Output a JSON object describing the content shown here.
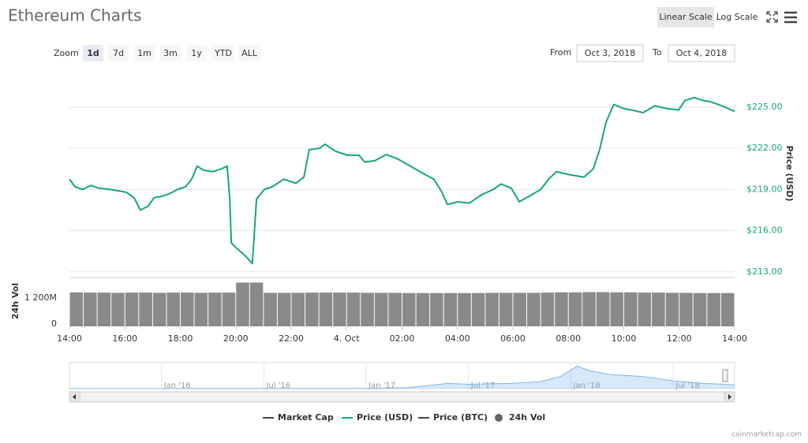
{
  "header": {
    "title": "Ethereum Charts",
    "scale_buttons": [
      "Linear Scale",
      "Log Scale"
    ]
  },
  "toolbar": {
    "zoom_label": "Zoom",
    "zoom_buttons": [
      "1d",
      "7d",
      "1m",
      "3m",
      "1y",
      "YTD",
      "ALL"
    ],
    "from_label": "From",
    "from_date": "Oct 3, 2018",
    "to_label": "To",
    "to_date": "Oct 4, 2018"
  },
  "legend": [
    "Market Cap",
    "Price (BTC)"
  ],
  "credits": "coinmarketcap.com",
  "chart_data": [
    {
      "type": "line",
      "y_label": "Price (USD)",
      "x": [
        14.0,
        14.2,
        14.48,
        14.77,
        15.05,
        15.48,
        16.05,
        16.33,
        16.56,
        16.85,
        17.05,
        17.33,
        17.62,
        17.9,
        18.19,
        18.41,
        18.61,
        18.84,
        19.18,
        19.47,
        19.69,
        19.78,
        19.84,
        20.04,
        20.33,
        20.6,
        20.75,
        21.03,
        21.32,
        21.74,
        22.17,
        22.46,
        22.65,
        23.02,
        23.22,
        23.59,
        24.02,
        24.45,
        24.65,
        25.02,
        25.44,
        25.87,
        26.3,
        26.73,
        27.15,
        27.44,
        27.64,
        28.01,
        28.43,
        28.86,
        29.29,
        29.57,
        29.94,
        30.23,
        30.58,
        31.0,
        31.29,
        31.57,
        31.99,
        32.56,
        32.9,
        33.13,
        33.36,
        33.64,
        33.99,
        34.27,
        34.7,
        35.12,
        35.55,
        35.98,
        36.21,
        36.55,
        36.83,
        37.12,
        37.54,
        38.0
      ],
      "series": [
        {
          "name": "Price (USD)",
          "color": "#18a47b",
          "values": [
            219.75,
            219.2,
            219.0,
            219.3,
            219.1,
            219.0,
            218.8,
            218.4,
            217.5,
            217.8,
            218.4,
            218.5,
            218.7,
            219.0,
            219.2,
            219.75,
            220.7,
            220.4,
            220.3,
            220.5,
            220.7,
            218.5,
            215.1,
            214.7,
            214.2,
            213.6,
            218.3,
            219.0,
            219.2,
            219.75,
            219.45,
            219.9,
            221.9,
            222.0,
            222.3,
            221.8,
            221.5,
            221.5,
            221.0,
            221.1,
            221.55,
            221.2,
            220.7,
            220.2,
            219.75,
            218.8,
            217.9,
            218.1,
            218.0,
            218.6,
            219.0,
            219.4,
            219.1,
            218.1,
            218.5,
            219.0,
            219.75,
            220.3,
            220.1,
            219.9,
            220.5,
            221.9,
            223.9,
            225.2,
            224.9,
            224.8,
            224.6,
            225.1,
            224.9,
            224.8,
            225.5,
            225.7,
            225.5,
            225.4,
            225.1,
            224.7
          ]
        }
      ],
      "xlim": [
        14,
        38
      ],
      "ylim": [
        212.7,
        227.7
      ],
      "yticks": [
        {
          "value": 213,
          "label": "$213.00"
        },
        {
          "value": 216,
          "label": "$216.00"
        },
        {
          "value": 219,
          "label": "$219.00"
        },
        {
          "value": 222,
          "label": "$222.00"
        },
        {
          "value": 225,
          "label": "$225.00"
        }
      ],
      "grid": true
    },
    {
      "type": "bar",
      "y_label": "24h Vol",
      "x": [
        14,
        14.5,
        15,
        15.5,
        16,
        16.5,
        17,
        17.5,
        18,
        18.5,
        19,
        19.5,
        20,
        20.5,
        21,
        21.5,
        22,
        22.5,
        23,
        23.5,
        24,
        24.5,
        25,
        25.5,
        26,
        26.5,
        27,
        27.5,
        28,
        28.5,
        29,
        29.5,
        30,
        30.5,
        31,
        31.5,
        32,
        32.5,
        33,
        33.5,
        34,
        34.5,
        35,
        35.5,
        36,
        36.5,
        37,
        37.5
      ],
      "series": [
        {
          "name": "24h Vol",
          "color": "#8a8a8a",
          "values": [
            1560000000,
            1550000000,
            1550000000,
            1540000000,
            1550000000,
            1550000000,
            1540000000,
            1550000000,
            1550000000,
            1540000000,
            1550000000,
            1550000000,
            2010000000,
            2010000000,
            1540000000,
            1540000000,
            1540000000,
            1550000000,
            1550000000,
            1550000000,
            1550000000,
            1540000000,
            1540000000,
            1540000000,
            1530000000,
            1530000000,
            1530000000,
            1530000000,
            1530000000,
            1530000000,
            1540000000,
            1540000000,
            1540000000,
            1540000000,
            1550000000,
            1560000000,
            1560000000,
            1570000000,
            1570000000,
            1560000000,
            1560000000,
            1550000000,
            1550000000,
            1540000000,
            1540000000,
            1530000000,
            1530000000,
            1530000000
          ]
        }
      ],
      "xlim": [
        14,
        38
      ],
      "ylim": [
        0,
        2245000000
      ],
      "yticks": [
        0,
        {
          "value": 1200000000,
          "label": "1 200M"
        }
      ],
      "xticks": [
        {
          "value": 14,
          "label": "14:00"
        },
        {
          "value": 16,
          "label": "16:00"
        },
        {
          "value": 18,
          "label": "18:00"
        },
        {
          "value": 20,
          "label": "20:00"
        },
        {
          "value": 22,
          "label": "22:00"
        },
        {
          "value": 24,
          "label": "4. Oct"
        },
        {
          "value": 26,
          "label": "02:00"
        },
        {
          "value": 28,
          "label": "04:00"
        },
        {
          "value": 30,
          "label": "06:00"
        },
        {
          "value": 32,
          "label": "08:00"
        },
        {
          "value": 34,
          "label": "10:00"
        },
        {
          "value": 36,
          "label": "12:00"
        },
        {
          "value": 38,
          "label": "14:00"
        }
      ]
    },
    {
      "type": "area",
      "x": [
        2015.55,
        2015.8,
        2016.0,
        2016.2,
        2016.45,
        2016.7,
        2017.0,
        2017.2,
        2017.4,
        2017.5,
        2017.7,
        2017.85,
        2017.95,
        2018.03,
        2018.1,
        2018.2,
        2018.35,
        2018.5,
        2018.65,
        2018.8
      ],
      "series": [
        {
          "color": "#7cb5ec",
          "values": [
            1,
            1,
            1,
            10,
            12,
            12,
            8,
            50,
            300,
            250,
            300,
            400,
            700,
            1300,
            1000,
            800,
            700,
            450,
            300,
            220
          ]
        }
      ],
      "xlim": [
        2015.55,
        2018.8
      ],
      "ylim": [
        0,
        1500
      ],
      "xticks": [
        {
          "value": 2016,
          "label": "Jan '16"
        },
        {
          "value": 2016.5,
          "label": "Jul '16"
        },
        {
          "value": 2017,
          "label": "Jan '17"
        },
        {
          "value": 2017.5,
          "label": "Jul '17"
        },
        {
          "value": 2018,
          "label": "Jan '18"
        },
        {
          "value": 2018.5,
          "label": "Jul '18"
        }
      ]
    }
  ]
}
